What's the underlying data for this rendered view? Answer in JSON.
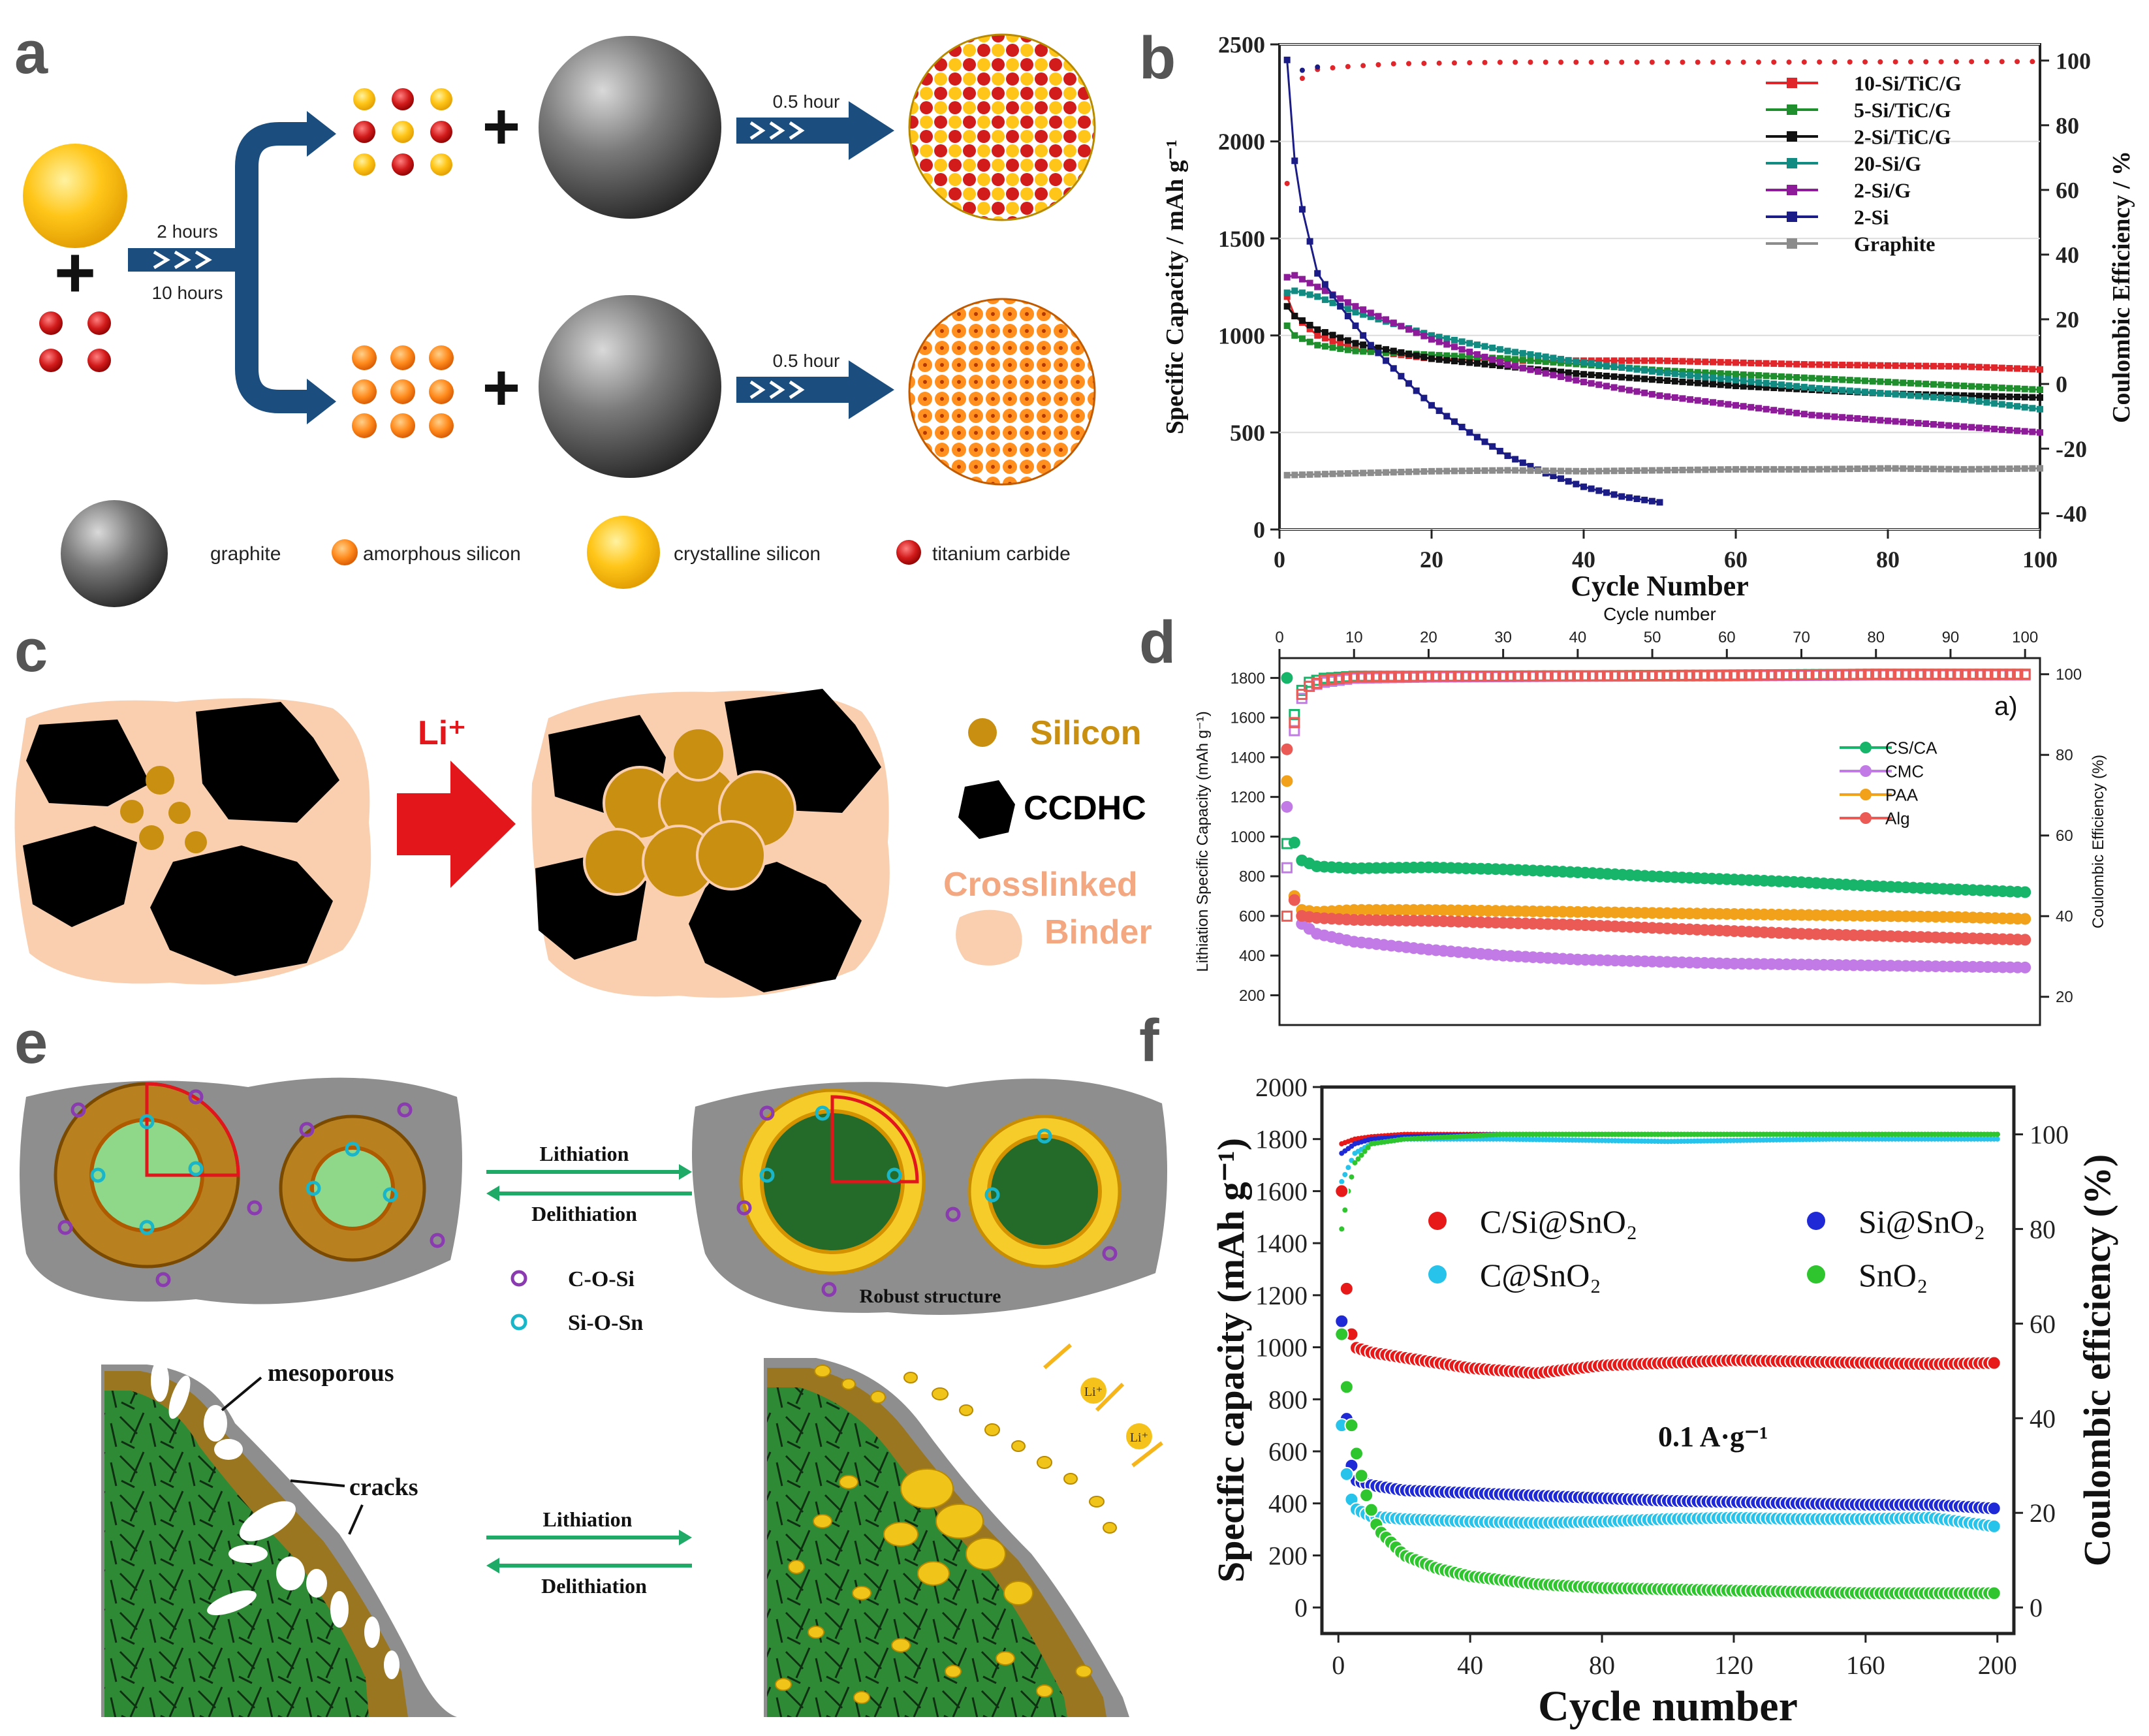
{
  "panels": {
    "a": {
      "letter": "a",
      "times": [
        "2 hours",
        "10 hours"
      ],
      "arrow_time": "0.5 hour",
      "legend": [
        "graphite",
        "amorphous silicon",
        "crystalline silicon",
        "titanium carbide"
      ]
    },
    "c": {
      "letter": "c",
      "li_label": "Li⁺",
      "legend": [
        "Silicon",
        "CCDHC",
        "Crosslinked",
        "Binder"
      ]
    },
    "e": {
      "letter": "e",
      "arrow_top": [
        "Lithiation",
        "Delithiation"
      ],
      "bonds": [
        "C-O-Si",
        "Si-O-Sn"
      ],
      "robust": "Robust structure",
      "mesoporous": "mesoporous",
      "cracks": "cracks",
      "arrow_bottom": [
        "Lithiation",
        "Delithiation"
      ],
      "li_badge": "Li⁺"
    }
  },
  "colors": {
    "red": "#e0262b",
    "green": "#1e8f2c",
    "black": "#111111",
    "teal": "#128c82",
    "purple": "#8e1b9a",
    "navy": "#1b1c86",
    "grey": "#8c8c8c",
    "cs": "#17b56a",
    "cmc": "#c27be6",
    "paa": "#f2a11a",
    "alg": "#ec5a55",
    "f_red": "#e81919",
    "f_blue": "#1f2ad6",
    "f_cyan": "#27c3ea",
    "f_green": "#2fc52f",
    "arrow_blue": "#1b4d7e",
    "green_arrow": "#1faa68"
  },
  "chart_data": [
    {
      "panel": "b",
      "type": "line",
      "letter": "b",
      "xlabel": "Cycle Number",
      "ylabel": "Specific Capacity / mAh g⁻¹",
      "y2label": "Coulombic Efficiency / %",
      "xlim": [
        0,
        100
      ],
      "ylim": [
        0,
        2500
      ],
      "y2lim": [
        -45,
        105
      ],
      "xticks": [
        "0",
        "20",
        "40",
        "60",
        "80",
        "100"
      ],
      "yticks": [
        "0",
        "500",
        "1000",
        "1500",
        "2000",
        "2500"
      ],
      "y2ticks": [
        "-40",
        "-20",
        "0",
        "20",
        "40",
        "60",
        "80",
        "100"
      ],
      "series": [
        {
          "name": "10-Si/TiC/G",
          "color": "#e0262b",
          "x": [
            1,
            2,
            5,
            10,
            20,
            30,
            40,
            50,
            60,
            70,
            80,
            90,
            100
          ],
          "y": [
            1200,
            1100,
            1000,
            930,
            880,
            870,
            870,
            870,
            860,
            850,
            845,
            840,
            825
          ]
        },
        {
          "name": "5-Si/TiC/G",
          "color": "#1e8f2c",
          "x": [
            1,
            2,
            5,
            10,
            20,
            30,
            40,
            50,
            60,
            70,
            80,
            90,
            100
          ],
          "y": [
            1050,
            1000,
            950,
            920,
            900,
            880,
            850,
            820,
            800,
            780,
            760,
            740,
            720
          ]
        },
        {
          "name": "2-Si/TiC/G",
          "color": "#111111",
          "x": [
            1,
            2,
            5,
            10,
            20,
            30,
            40,
            50,
            60,
            70,
            80,
            90,
            100
          ],
          "y": [
            1150,
            1100,
            1030,
            960,
            880,
            840,
            800,
            770,
            740,
            720,
            700,
            690,
            680
          ]
        },
        {
          "name": "20-Si/G",
          "color": "#128c82",
          "x": [
            1,
            2,
            5,
            10,
            20,
            30,
            40,
            50,
            60,
            70,
            80,
            90,
            100
          ],
          "y": [
            1220,
            1230,
            1200,
            1120,
            1000,
            920,
            860,
            810,
            770,
            730,
            700,
            670,
            620
          ]
        },
        {
          "name": "2-Si/G",
          "color": "#8e1b9a",
          "x": [
            1,
            2,
            5,
            10,
            20,
            30,
            40,
            50,
            60,
            70,
            80,
            90,
            100
          ],
          "y": [
            1300,
            1310,
            1250,
            1150,
            980,
            850,
            760,
            690,
            640,
            590,
            560,
            530,
            500
          ]
        },
        {
          "name": "2-Si",
          "color": "#1b1c86",
          "x": [
            1,
            2,
            3,
            5,
            8,
            12,
            16,
            20,
            25,
            30,
            35,
            40,
            45,
            50
          ],
          "y": [
            2420,
            1900,
            1650,
            1320,
            1150,
            950,
            790,
            640,
            500,
            380,
            290,
            220,
            170,
            140
          ]
        },
        {
          "name": "Graphite",
          "color": "#8c8c8c",
          "x": [
            1,
            10,
            20,
            30,
            40,
            50,
            60,
            70,
            80,
            90,
            100
          ],
          "y": [
            280,
            290,
            300,
            305,
            300,
            305,
            310,
            310,
            315,
            310,
            315
          ]
        }
      ],
      "ce_series": [
        {
          "name": "10-Si/TiC/G",
          "color": "#e0262b",
          "x": [
            1,
            2,
            4,
            8,
            15,
            30,
            60,
            100
          ],
          "y": [
            62,
            92,
            97,
            98,
            99,
            99.5,
            99.5,
            99.7
          ]
        },
        {
          "name": "2-Si",
          "color": "#1b1c86",
          "x": [
            1,
            2,
            3,
            5
          ],
          "y": [
            100,
            92,
            97,
            98
          ]
        }
      ]
    },
    {
      "panel": "d",
      "type": "scatter",
      "letter": "d",
      "xlabel": "Cycle number",
      "ylabel": "Lithiation Specific Capacity (mAh g⁻¹)",
      "y2label": "Coulombic Efficiency (%)",
      "annotation": "a)",
      "xlim": [
        0,
        102
      ],
      "ylim": [
        50,
        1900
      ],
      "y2lim": [
        13,
        104
      ],
      "xticks": [
        "0",
        "10",
        "20",
        "30",
        "40",
        "50",
        "60",
        "70",
        "80",
        "90",
        "100"
      ],
      "yticks": [
        "200",
        "400",
        "600",
        "800",
        "1000",
        "1200",
        "1400",
        "1600",
        "1800"
      ],
      "y2ticks": [
        "20",
        "40",
        "60",
        "80",
        "100"
      ],
      "series": [
        {
          "name": "CS/CA",
          "color": "#17b56a",
          "x": [
            1,
            2,
            3,
            5,
            10,
            20,
            30,
            40,
            50,
            60,
            70,
            80,
            90,
            100
          ],
          "y": [
            1800,
            970,
            880,
            850,
            840,
            845,
            835,
            820,
            800,
            785,
            770,
            750,
            735,
            720
          ]
        },
        {
          "name": "CMC",
          "color": "#c27be6",
          "x": [
            1,
            2,
            3,
            5,
            10,
            20,
            30,
            40,
            50,
            60,
            70,
            80,
            90,
            100
          ],
          "y": [
            1150,
            700,
            560,
            510,
            470,
            430,
            400,
            380,
            370,
            360,
            355,
            350,
            345,
            340
          ]
        },
        {
          "name": "PAA",
          "color": "#f2a11a",
          "x": [
            1,
            2,
            3,
            5,
            10,
            20,
            30,
            40,
            50,
            60,
            70,
            80,
            90,
            100
          ],
          "y": [
            1280,
            700,
            630,
            620,
            630,
            630,
            625,
            620,
            615,
            610,
            605,
            600,
            595,
            585
          ]
        },
        {
          "name": "Alg",
          "color": "#ec5a55",
          "x": [
            1,
            2,
            3,
            5,
            10,
            20,
            30,
            40,
            50,
            60,
            70,
            80,
            90,
            100
          ],
          "y": [
            1440,
            680,
            600,
            590,
            580,
            575,
            565,
            555,
            540,
            525,
            510,
            500,
            490,
            480
          ]
        }
      ],
      "ce_series": [
        {
          "name": "CS/CA",
          "color": "#17b56a",
          "x": [
            1,
            2,
            3,
            4,
            6,
            10,
            20,
            40,
            60,
            80,
            100
          ],
          "y": [
            58,
            90,
            96,
            98,
            99,
            99.5,
            99.5,
            99.6,
            99.8,
            100,
            100
          ]
        },
        {
          "name": "CMC",
          "color": "#c27be6",
          "x": [
            1,
            2,
            3,
            4,
            6,
            10,
            20,
            40,
            60,
            80,
            100
          ],
          "y": [
            52,
            86,
            94,
            97,
            98,
            99,
            99.3,
            99.5,
            99.6,
            99.8,
            99.8
          ]
        },
        {
          "name": "Alg",
          "color": "#ec5a55",
          "x": [
            1,
            2,
            3,
            4,
            6,
            10,
            20,
            40,
            60,
            80,
            100
          ],
          "y": [
            40,
            88,
            95,
            97,
            98.5,
            99.3,
            99.5,
            99.6,
            99.7,
            100,
            100
          ]
        }
      ]
    },
    {
      "panel": "f",
      "type": "scatter",
      "letter": "f",
      "xlabel": "Cycle number",
      "ylabel": "Specific capacity (mAh g⁻¹)",
      "y2label": "Coulombic efficiency (%)",
      "annotation": "0.1 A·g⁻¹",
      "xlim": [
        -5,
        205
      ],
      "ylim": [
        -100,
        2000
      ],
      "y2lim": [
        -5.5,
        110
      ],
      "xticks": [
        "0",
        "40",
        "80",
        "120",
        "160",
        "200"
      ],
      "yticks": [
        "0",
        "200",
        "400",
        "600",
        "800",
        "1000",
        "1200",
        "1400",
        "1600",
        "1800",
        "2000"
      ],
      "y2ticks": [
        "0",
        "20",
        "40",
        "60",
        "80",
        "100"
      ],
      "series": [
        {
          "name": "C/Si@SnO₂",
          "color": "#e81919",
          "x": [
            1,
            3,
            5,
            10,
            20,
            40,
            60,
            80,
            100,
            120,
            140,
            160,
            180,
            200
          ],
          "y": [
            1600,
            1100,
            1000,
            980,
            960,
            920,
            900,
            930,
            940,
            950,
            945,
            940,
            935,
            940
          ]
        },
        {
          "name": "Si@SnO₂",
          "color": "#1f2ad6",
          "x": [
            1,
            3,
            5,
            10,
            20,
            40,
            60,
            80,
            100,
            120,
            140,
            160,
            180,
            200
          ],
          "y": [
            1100,
            600,
            490,
            470,
            450,
            440,
            430,
            420,
            410,
            405,
            400,
            395,
            395,
            380
          ]
        },
        {
          "name": "C@SnO₂",
          "color": "#27c3ea",
          "x": [
            1,
            3,
            5,
            10,
            20,
            40,
            60,
            80,
            100,
            120,
            140,
            160,
            180,
            200
          ],
          "y": [
            700,
            450,
            380,
            350,
            340,
            330,
            325,
            330,
            340,
            345,
            340,
            340,
            345,
            310
          ]
        },
        {
          "name": "SnO₂",
          "color": "#2fc52f",
          "x": [
            1,
            3,
            5,
            8,
            12,
            20,
            30,
            40,
            60,
            80,
            100,
            120,
            140,
            160,
            180,
            200
          ],
          "y": [
            1050,
            780,
            620,
            450,
            300,
            200,
            150,
            120,
            90,
            75,
            70,
            65,
            60,
            55,
            55,
            55
          ]
        }
      ],
      "ce_series": [
        {
          "name": "C/Si@SnO₂",
          "color": "#e81919",
          "x": [
            1,
            5,
            10,
            20,
            50,
            100,
            150,
            200
          ],
          "y": [
            98,
            99,
            99.5,
            100,
            100,
            100,
            100,
            100
          ]
        },
        {
          "name": "Si@SnO₂",
          "color": "#1f2ad6",
          "x": [
            1,
            5,
            10,
            20,
            50,
            100,
            150,
            200
          ],
          "y": [
            96,
            98,
            99,
            99.5,
            100,
            100,
            100,
            100
          ]
        },
        {
          "name": "C@SnO₂",
          "color": "#27c3ea",
          "x": [
            1,
            5,
            10,
            20,
            50,
            100,
            150,
            200
          ],
          "y": [
            90,
            96,
            98,
            99,
            99,
            98.5,
            99,
            99
          ]
        },
        {
          "name": "SnO₂",
          "color": "#2fc52f",
          "x": [
            1,
            3,
            5,
            10,
            20,
            50,
            100,
            150,
            200
          ],
          "y": [
            80,
            88,
            94,
            98,
            99,
            100,
            100,
            100,
            100
          ]
        }
      ]
    }
  ]
}
